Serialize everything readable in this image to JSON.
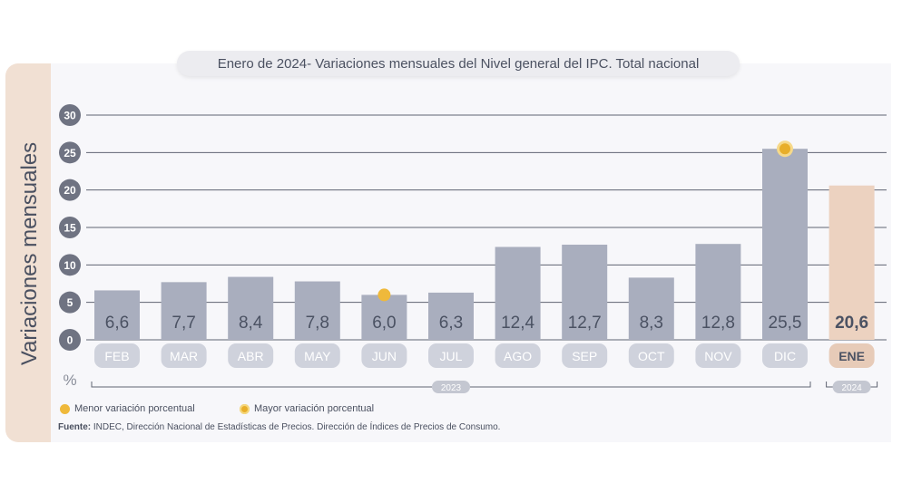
{
  "chart_data": {
    "type": "bar",
    "title_date": "Enero de 2024",
    "title_rest": " - Variaciones mensuales del Nivel general del IPC. Total nacional",
    "ylabel": "Variaciones mensuales",
    "unit": "%",
    "ylim": [
      0,
      30
    ],
    "yticks": [
      "0",
      "5",
      "10",
      "15",
      "20",
      "25",
      "30"
    ],
    "categories": [
      "FEB",
      "MAR",
      "ABR",
      "MAY",
      "JUN",
      "JUL",
      "AGO",
      "SEP",
      "OCT",
      "NOV",
      "DIC",
      "ENE"
    ],
    "values": [
      6.6,
      7.7,
      8.4,
      7.8,
      6.0,
      6.3,
      12.4,
      12.7,
      8.3,
      12.8,
      25.5,
      20.6
    ],
    "value_labels": [
      "6,6",
      "7,7",
      "8,4",
      "7,8",
      "6,0",
      "6,3",
      "12,4",
      "12,7",
      "8,3",
      "12,8",
      "25,5",
      "20,6"
    ],
    "year_groups": [
      {
        "label": "2023",
        "categories": [
          "FEB",
          "MAR",
          "ABR",
          "MAY",
          "JUN",
          "JUL",
          "AGO",
          "SEP",
          "OCT",
          "NOV",
          "DIC"
        ]
      },
      {
        "label": "2024",
        "categories": [
          "ENE"
        ]
      }
    ],
    "highlight": "ENE",
    "min_marker": "JUN",
    "max_marker": "DIC",
    "grid": true,
    "colors": {
      "bar": "#a9aebe",
      "highlight_bar": "#ecd2c0",
      "label": "#4b5263",
      "marker": "#efb93b",
      "axis_pill": "#cfd2dc",
      "highlight_pill": "#e7cbb8"
    }
  },
  "legend": {
    "min_label": "Menor variación porcentual",
    "max_label": "Mayor variación porcentual"
  },
  "source": {
    "label": "Fuente:",
    "text": " INDEC, Dirección Nacional de Estadísticas de Precios. Dirección de Índices de Precios de Consumo."
  }
}
